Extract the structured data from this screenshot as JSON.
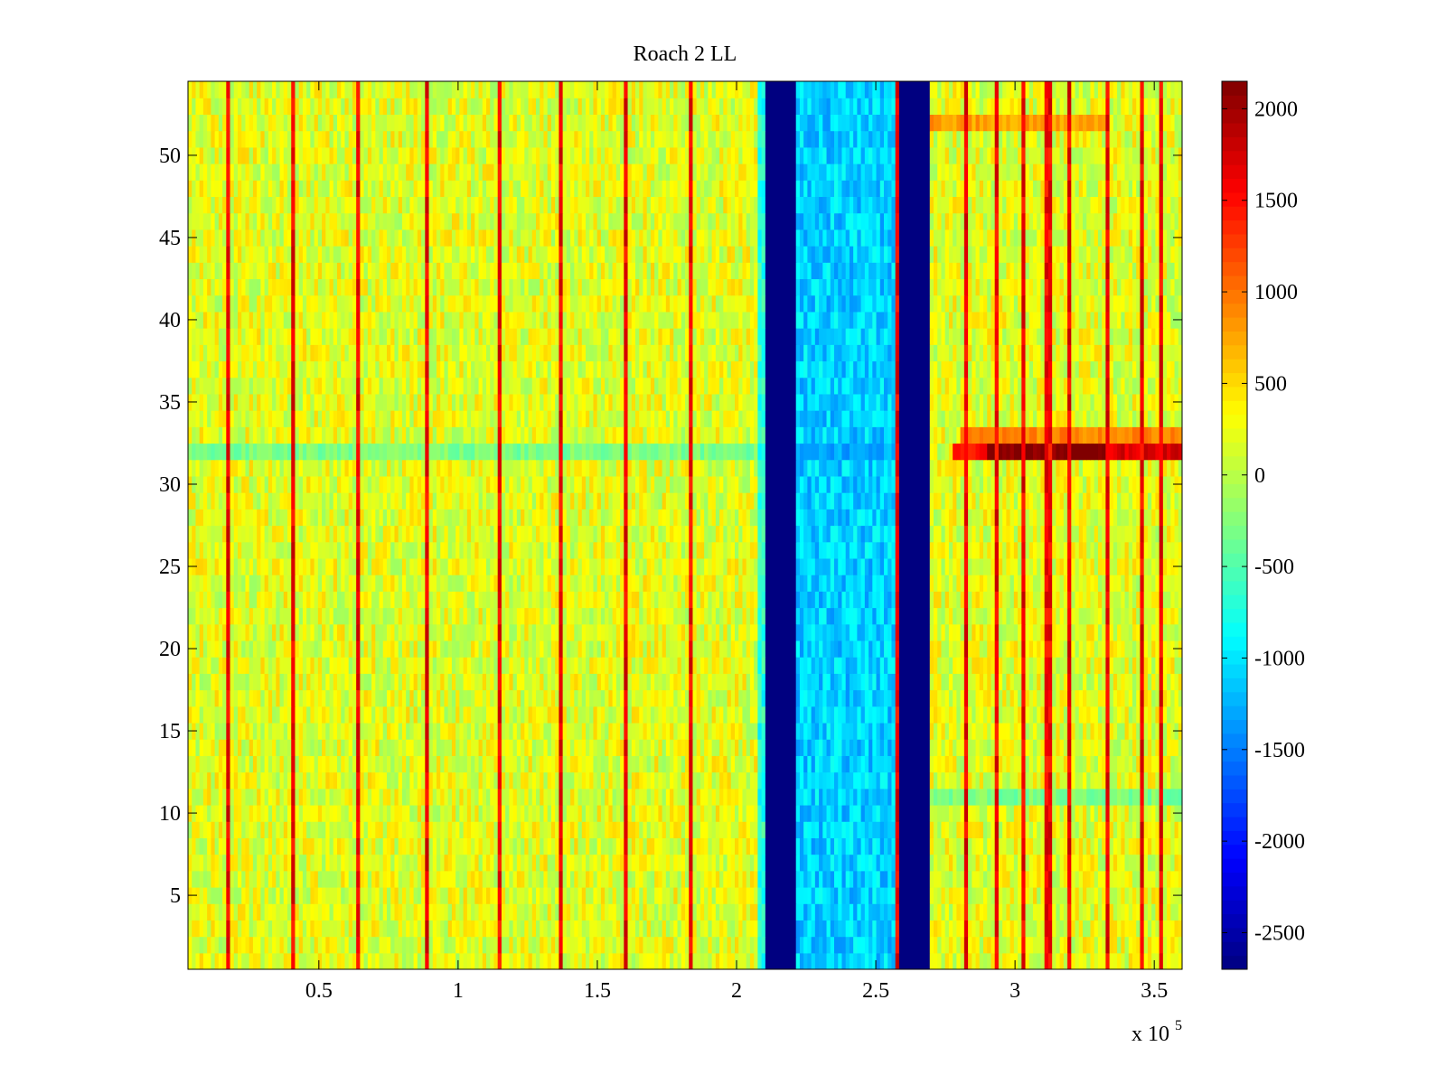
{
  "chart_data": {
    "type": "heatmap",
    "title": "Roach 2 LL",
    "xlabel": "",
    "ylabel": "",
    "x_exponent_label": "x 10",
    "x_exponent_power": "5",
    "xlim": [
      0.3,
      36.0
    ],
    "ylim": [
      0.5,
      54.5
    ],
    "x_ticks": [
      {
        "value": 5,
        "label": "0.5"
      },
      {
        "value": 10,
        "label": "1"
      },
      {
        "value": 15,
        "label": "1.5"
      },
      {
        "value": 20,
        "label": "2"
      },
      {
        "value": 25,
        "label": "2.5"
      },
      {
        "value": 30,
        "label": "3"
      },
      {
        "value": 35,
        "label": "3.5"
      }
    ],
    "y_ticks": [
      {
        "value": 5,
        "label": "5"
      },
      {
        "value": 10,
        "label": "10"
      },
      {
        "value": 15,
        "label": "15"
      },
      {
        "value": 20,
        "label": "20"
      },
      {
        "value": 25,
        "label": "25"
      },
      {
        "value": 30,
        "label": "30"
      },
      {
        "value": 35,
        "label": "35"
      },
      {
        "value": 40,
        "label": "40"
      },
      {
        "value": 45,
        "label": "45"
      },
      {
        "value": 50,
        "label": "50"
      }
    ],
    "colorbar": {
      "colormap": "jet",
      "clim": [
        -2700,
        2150
      ],
      "ticks": [
        {
          "value": 2000,
          "label": "2000"
        },
        {
          "value": 1500,
          "label": "1500"
        },
        {
          "value": 1000,
          "label": "1000"
        },
        {
          "value": 500,
          "label": "500"
        },
        {
          "value": 0,
          "label": "0"
        },
        {
          "value": -500,
          "label": "-500"
        },
        {
          "value": -1000,
          "label": "-1000"
        },
        {
          "value": -1500,
          "label": "-1500"
        },
        {
          "value": -2000,
          "label": "-2000"
        },
        {
          "value": -2500,
          "label": "-2500"
        }
      ]
    },
    "rows": 54,
    "columns": 260,
    "background_level": 200,
    "regions": [
      {
        "x_from": 20.8,
        "x_to": 21.1,
        "level": -700
      },
      {
        "x_from": 21.1,
        "x_to": 22.2,
        "level": -2700
      },
      {
        "x_from": 22.2,
        "x_to": 25.8,
        "level": -1100
      },
      {
        "x_from": 25.8,
        "x_to": 27.0,
        "level": -2700
      }
    ],
    "bright_lines_x": [
      1.8,
      4.1,
      6.45,
      8.9,
      11.5,
      13.7,
      16.0,
      18.3,
      25.8,
      28.2,
      29.3,
      30.3,
      31.2,
      32.0,
      33.3,
      34.6,
      35.3
    ],
    "bright_line_level": 1600,
    "row_anomalies": [
      {
        "row": 32,
        "x_from": 0.3,
        "x_to": 20.8,
        "level": -300
      },
      {
        "row": 32,
        "x_from": 22.2,
        "x_to": 25.8,
        "level": -1300
      },
      {
        "row": 32,
        "x_from": 27.8,
        "x_to": 29.0,
        "level": 1500
      },
      {
        "row": 32,
        "x_from": 29.0,
        "x_to": 33.2,
        "level": 2150
      },
      {
        "row": 32,
        "x_from": 33.2,
        "x_to": 36.0,
        "level": 1700
      },
      {
        "row": 33,
        "x_from": 28.0,
        "x_to": 36.0,
        "level": 900
      },
      {
        "row": 52,
        "x_from": 27.0,
        "x_to": 33.4,
        "level": 800
      },
      {
        "row": 11,
        "x_from": 27.0,
        "x_to": 36.0,
        "level": -300
      }
    ]
  }
}
